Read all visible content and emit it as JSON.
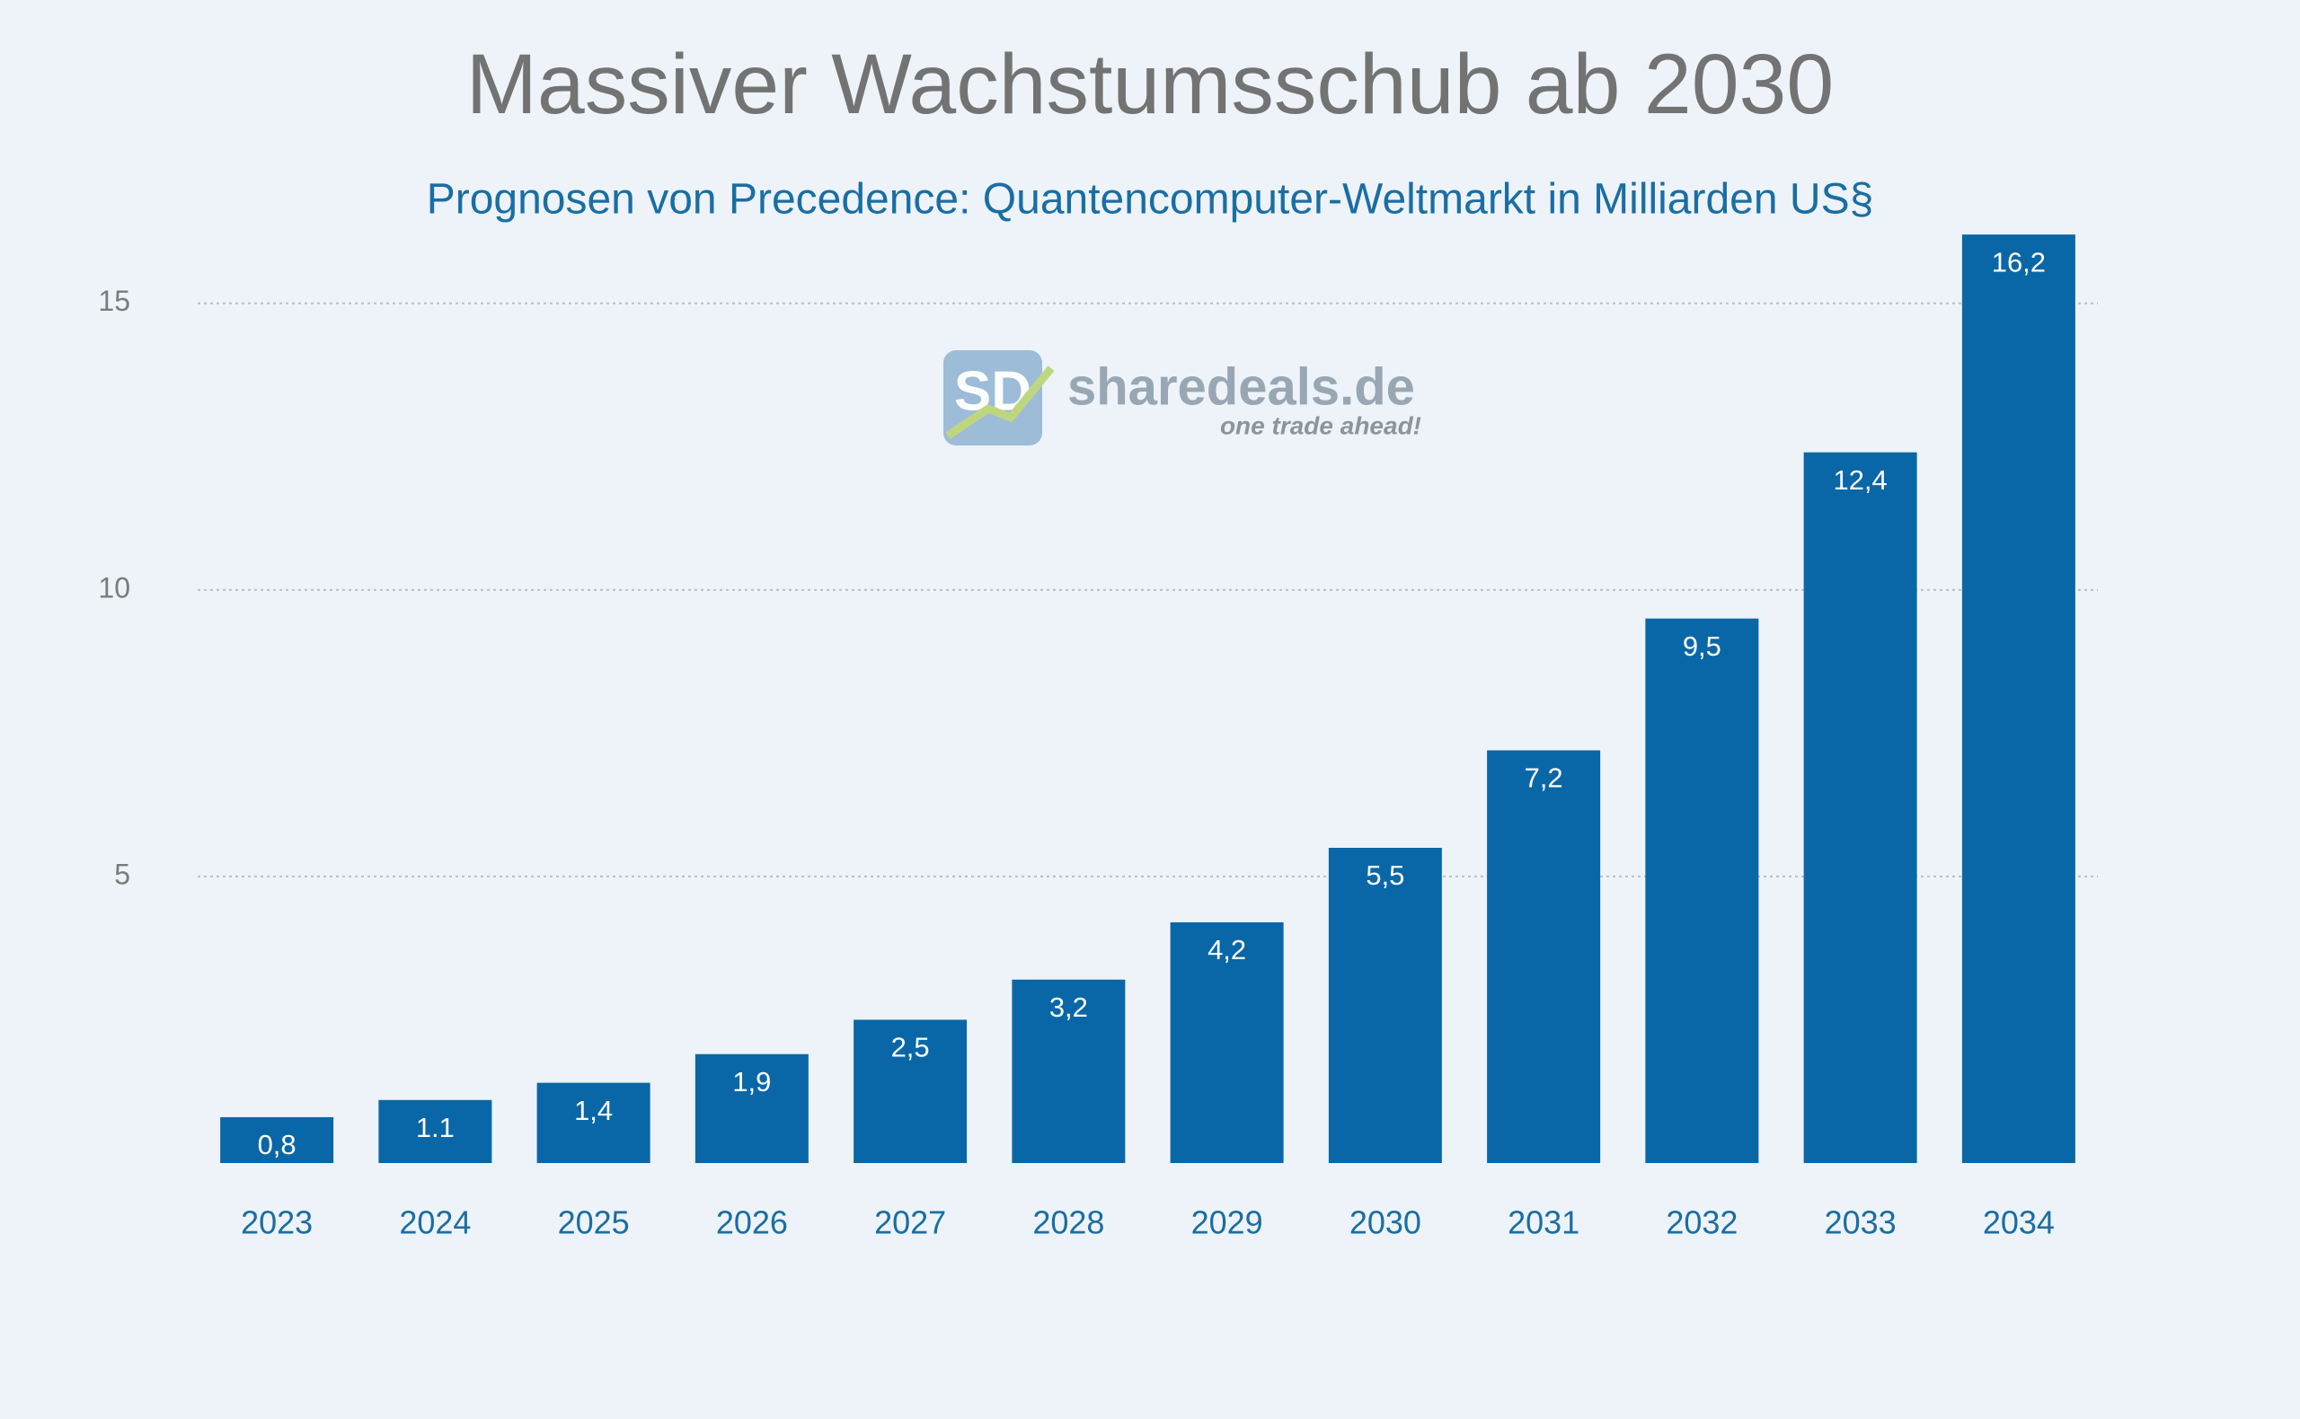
{
  "chart_data": {
    "type": "bar",
    "title": "Massiver Wachstumsschub ab 2030",
    "subtitle": "Prognosen von Precedence: Quantencomputer-Weltmarkt in Milliarden US§",
    "categories": [
      "2023",
      "2024",
      "2025",
      "2026",
      "2027",
      "2028",
      "2029",
      "2030",
      "2031",
      "2032",
      "2033",
      "2034"
    ],
    "values": [
      0.8,
      1.1,
      1.4,
      1.9,
      2.5,
      3.2,
      4.2,
      5.5,
      7.2,
      9.5,
      12.4,
      16.2
    ],
    "value_labels": [
      "0,8",
      "1.1",
      "1,4",
      "1,9",
      "2,5",
      "3,2",
      "4,2",
      "5,5",
      "7,2",
      "9,5",
      "12,4",
      "16,2"
    ],
    "color": "#0a67a7",
    "ylim": [
      0,
      16.5
    ],
    "yticks": [
      5,
      10,
      15
    ],
    "grid": true
  },
  "logo": {
    "icon": "SD",
    "name": "sharedeals.de",
    "tagline": "one trade ahead!"
  }
}
